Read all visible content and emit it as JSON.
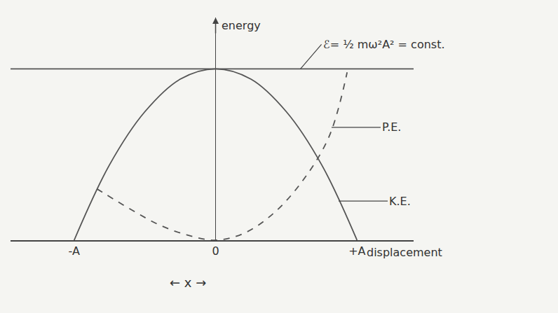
{
  "chart_data": {
    "type": "line",
    "x_label": "displacement",
    "y_label": "energy",
    "annotations": [
      "← x →"
    ],
    "xlim": [
      -1.45,
      1.4
    ],
    "xticks": [
      {
        "value": -1,
        "label": "-A"
      },
      0,
      {
        "value": 1,
        "label": "+A"
      }
    ],
    "ylim": [
      0,
      1.3
    ],
    "tick_labels": "x",
    "grid": false,
    "series": [
      {
        "name": "ℰ= ½ mω²A² = const.",
        "color": "#555555",
        "line_style": "solid",
        "x": [
          -1.45,
          1.4
        ],
        "values": [
          1,
          1
        ]
      },
      {
        "name": "P.E.",
        "color": "#555555",
        "line_style": "dashed",
        "x": [
          -0.84,
          -0.6,
          -0.4,
          -0.2,
          0,
          0.2,
          0.4,
          0.6,
          0.8,
          0.93
        ],
        "values": [
          0.3,
          0.18,
          0.09,
          0.03,
          0,
          0.04,
          0.15,
          0.33,
          0.6,
          0.98
        ]
      },
      {
        "name": "K.E.",
        "color": "#555555",
        "line_style": "solid",
        "x": [
          -1,
          -0.75,
          -0.5,
          -0.25,
          0,
          0.25,
          0.5,
          0.75,
          1
        ],
        "values": [
          0,
          0.44,
          0.75,
          0.94,
          1,
          0.94,
          0.75,
          0.44,
          0
        ]
      }
    ]
  }
}
